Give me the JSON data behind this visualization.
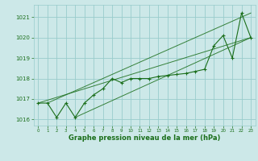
{
  "xlabel": "Graphe pression niveau de la mer (hPa)",
  "hours": [
    0,
    1,
    2,
    3,
    4,
    5,
    6,
    7,
    8,
    9,
    10,
    11,
    12,
    13,
    14,
    15,
    16,
    17,
    18,
    19,
    20,
    21,
    22,
    23
  ],
  "pressure": [
    1016.8,
    1016.8,
    1016.1,
    1016.8,
    1016.1,
    1016.8,
    1017.2,
    1017.5,
    1018.0,
    1017.8,
    1018.0,
    1018.0,
    1018.0,
    1018.1,
    1018.15,
    1018.2,
    1018.25,
    1018.35,
    1018.45,
    1019.6,
    1020.1,
    1019.0,
    1021.2,
    1020.0
  ],
  "line_color": "#1a6e1a",
  "bg_color": "#cce8e8",
  "grid_color": "#99cccc",
  "text_color": "#1a6e1a",
  "ylim": [
    1015.7,
    1021.6
  ],
  "yticks": [
    1016,
    1017,
    1018,
    1019,
    1020,
    1021
  ],
  "trend_lines": [
    [
      0,
      1016.8,
      23,
      1020.0
    ],
    [
      1,
      1016.8,
      23,
      1021.2
    ],
    [
      4,
      1016.1,
      23,
      1020.0
    ]
  ]
}
